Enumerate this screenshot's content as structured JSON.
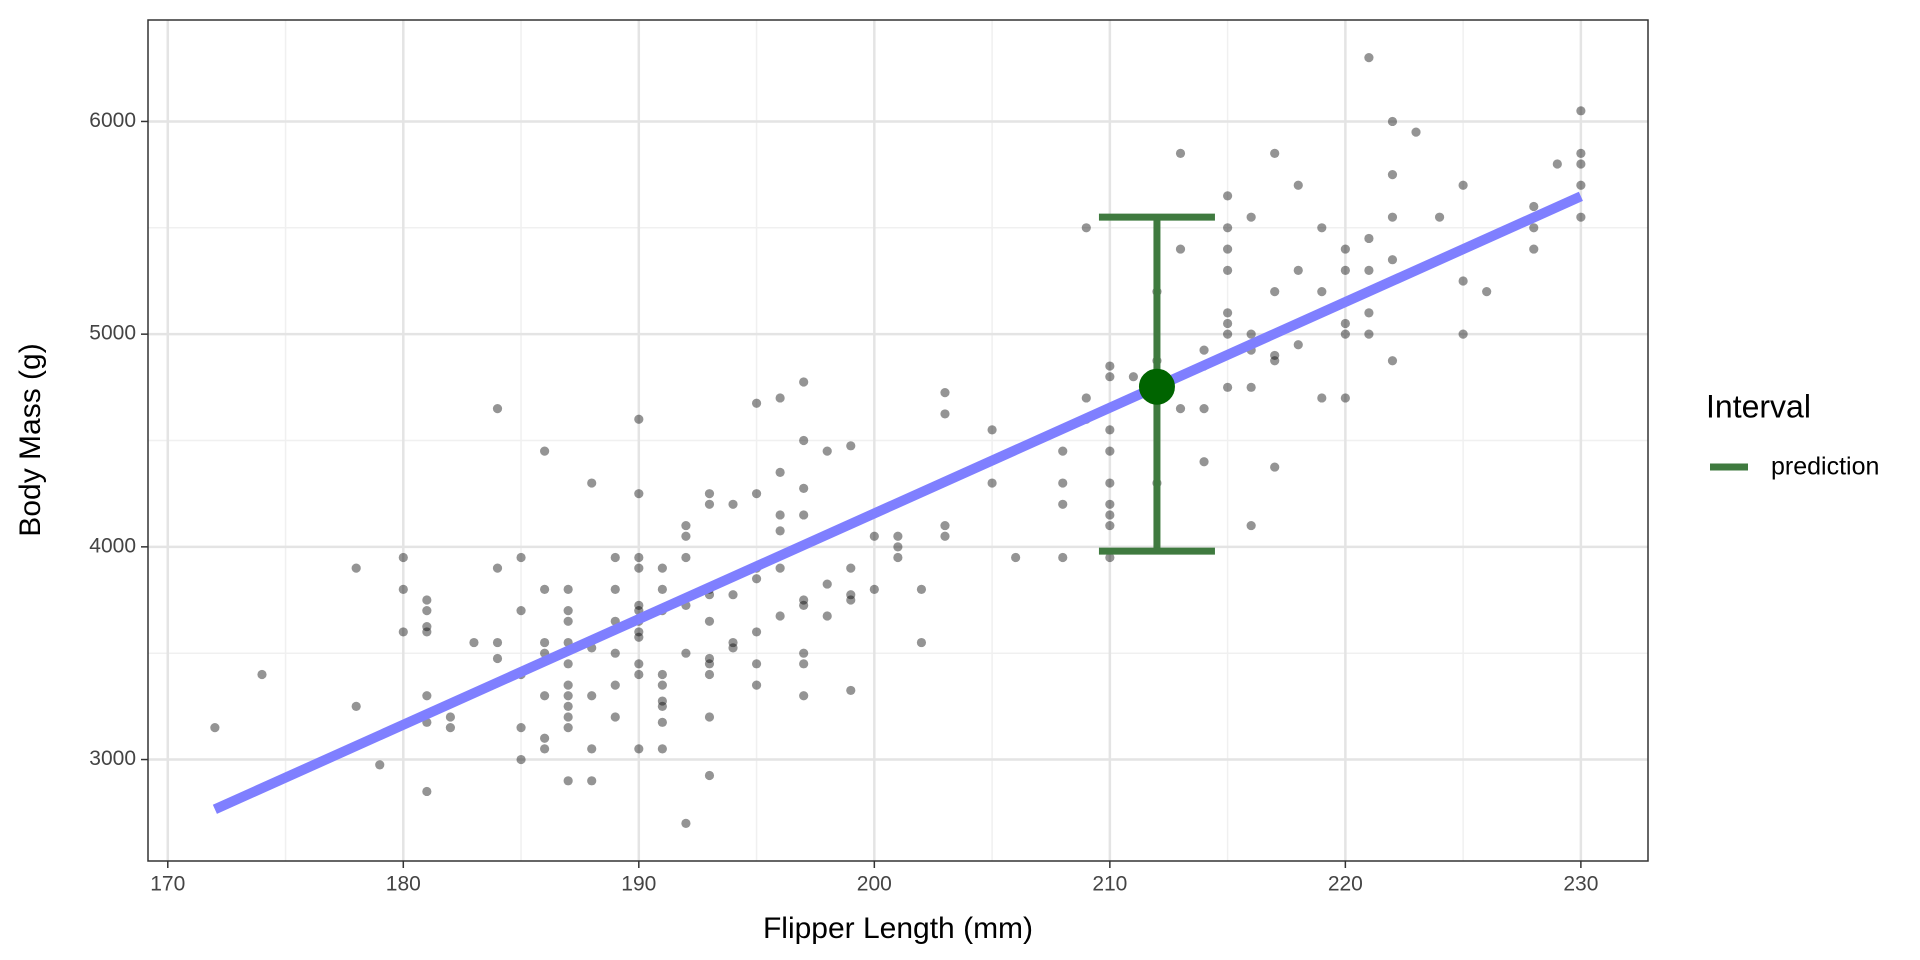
{
  "chart_data": {
    "type": "scatter",
    "x_label": "Flipper Length (mm)",
    "y_label": "Body Mass (g)",
    "xlim": [
      169.16,
      232.85
    ],
    "ylim": [
      2523,
      6477
    ],
    "xticks": [
      170,
      180,
      190,
      200,
      210,
      220,
      230
    ],
    "yticks": [
      3000,
      4000,
      5000,
      6000
    ],
    "grid": true,
    "point_color": "#000000",
    "x": [
      172,
      174,
      178,
      178,
      179,
      180,
      180,
      180,
      181,
      181,
      181,
      181,
      181,
      181,
      181,
      182,
      182,
      183,
      184,
      184,
      184,
      184,
      185,
      185,
      185,
      185,
      185,
      186,
      186,
      186,
      186,
      186,
      186,
      186,
      187,
      187,
      187,
      187,
      187,
      187,
      187,
      187,
      187,
      187,
      187,
      188,
      188,
      188,
      188,
      188,
      189,
      189,
      189,
      189,
      189,
      189,
      190,
      190,
      190,
      190,
      190,
      190,
      190,
      190,
      190,
      190,
      190,
      190,
      191,
      191,
      191,
      191,
      191,
      191,
      191,
      191,
      191,
      192,
      192,
      192,
      192,
      192,
      192,
      193,
      193,
      193,
      193,
      193,
      193,
      193,
      193,
      193,
      193,
      194,
      194,
      194,
      194,
      195,
      195,
      195,
      195,
      195,
      195,
      195,
      196,
      196,
      196,
      196,
      196,
      196,
      197,
      197,
      197,
      197,
      197,
      197,
      197,
      197,
      197,
      198,
      198,
      198,
      199,
      199,
      199,
      199,
      199,
      200,
      200,
      201,
      201,
      201,
      202,
      202,
      203,
      203,
      203,
      203,
      205,
      205,
      206,
      208,
      208,
      208,
      208,
      209,
      209,
      209,
      210,
      210,
      210,
      210,
      210,
      210,
      210,
      210,
      210,
      211,
      212,
      212,
      212,
      213,
      213,
      213,
      214,
      214,
      214,
      214,
      215,
      215,
      215,
      215,
      215,
      215,
      215,
      215,
      216,
      216,
      216,
      216,
      216,
      217,
      217,
      217,
      217,
      217,
      218,
      218,
      218,
      219,
      219,
      219,
      220,
      220,
      220,
      220,
      220,
      221,
      221,
      221,
      221,
      221,
      222,
      222,
      222,
      222,
      222,
      222,
      223,
      224,
      224,
      225,
      225,
      225,
      225,
      226,
      228,
      228,
      228,
      229,
      230,
      230,
      230,
      230,
      230
    ],
    "y": [
      3150,
      3400,
      3900,
      3250,
      2975,
      3950,
      3800,
      3600,
      3750,
      3700,
      3625,
      3600,
      3300,
      3175,
      2850,
      3200,
      3150,
      3550,
      4650,
      3900,
      3550,
      3475,
      3950,
      3700,
      3400,
      3150,
      3000,
      4450,
      3800,
      3550,
      3500,
      3300,
      3100,
      3050,
      3800,
      3700,
      3650,
      3550,
      3450,
      3350,
      3300,
      3250,
      3200,
      3150,
      2900,
      4300,
      3525,
      3300,
      3050,
      2900,
      3950,
      3800,
      3650,
      3500,
      3350,
      3200,
      4600,
      4250,
      3950,
      3900,
      3725,
      3700,
      3650,
      3600,
      3575,
      3450,
      3400,
      3050,
      3900,
      3800,
      3700,
      3400,
      3350,
      3275,
      3250,
      3175,
      3050,
      4100,
      4050,
      3950,
      3725,
      3500,
      2700,
      4250,
      4200,
      3800,
      3775,
      3650,
      3475,
      3450,
      3400,
      3200,
      2925,
      4200,
      3775,
      3550,
      3525,
      4675,
      4250,
      3900,
      3850,
      3600,
      3450,
      3350,
      4700,
      4350,
      4150,
      4075,
      3900,
      3675,
      4775,
      4500,
      4275,
      4150,
      3750,
      3725,
      3500,
      3450,
      3300,
      4450,
      3825,
      3675,
      4475,
      3900,
      3775,
      3750,
      3325,
      4050,
      3800,
      4050,
      4000,
      3950,
      3800,
      3550,
      4725,
      4625,
      4100,
      4050,
      4550,
      4300,
      3950,
      4450,
      4300,
      4200,
      3950,
      5500,
      4700,
      4600,
      4850,
      4800,
      4550,
      4450,
      4300,
      4200,
      4150,
      4100,
      3950,
      4800,
      5200,
      4875,
      4300,
      5850,
      5400,
      4650,
      4925,
      4850,
      4650,
      4400,
      5650,
      5500,
      5400,
      5300,
      5100,
      5050,
      5000,
      4750,
      5550,
      5000,
      4925,
      4750,
      4100,
      5850,
      5200,
      4900,
      4875,
      4375,
      5700,
      5300,
      4950,
      5500,
      5200,
      4700,
      5400,
      5300,
      5050,
      5000,
      4700,
      6300,
      5450,
      5300,
      5100,
      5000,
      6000,
      5750,
      5550,
      5350,
      5250,
      4875,
      5950,
      5550,
      5350,
      5700,
      5400,
      5250,
      5000,
      5200,
      5600,
      5500,
      5400,
      5800,
      6050,
      5850,
      5800,
      5700,
      5550
    ],
    "fit": {
      "color": "#7f7fff",
      "x": [
        172,
        230
      ],
      "y": [
        2766,
        5648
      ]
    },
    "legend_title": "Interval",
    "interval": {
      "name": "prediction",
      "color": "#3f7a3f",
      "point_color": "#006400",
      "x": 212,
      "fit": 4753,
      "lower": 3980,
      "upper": 5550
    }
  }
}
